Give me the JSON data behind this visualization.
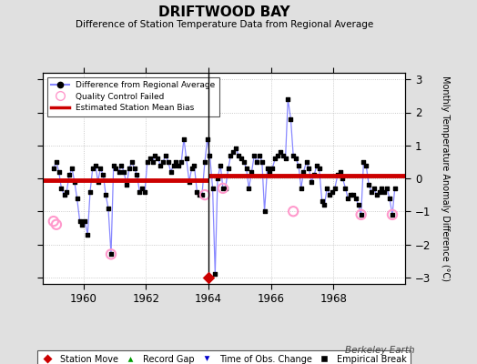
{
  "title": "DRIFTWOOD BAY",
  "subtitle": "Difference of Station Temperature Data from Regional Average",
  "ylabel": "Monthly Temperature Anomaly Difference (°C)",
  "xlim": [
    1958.7,
    1970.3
  ],
  "ylim": [
    -3.2,
    3.2
  ],
  "yticks": [
    -3,
    -2,
    -1,
    0,
    1,
    2,
    3
  ],
  "xticks": [
    1960,
    1962,
    1964,
    1966,
    1968
  ],
  "background_color": "#e0e0e0",
  "plot_background": "#ffffff",
  "grid_color": "#bbbbbb",
  "line_color": "#8888ff",
  "marker_color": "#000000",
  "bias_color": "#cc0000",
  "qc_color": "#ff99cc",
  "station_move_color": "#cc0000",
  "record_gap_color": "#009900",
  "time_obs_color": "#0000cc",
  "empirical_color": "#000000",
  "bias_before": -0.05,
  "bias_after": 0.07,
  "break_year": 1964.0,
  "station_move_x": 1964.0,
  "station_move_y": -3.0,
  "watermark": "Berkeley Earth",
  "data_x": [
    1959.04,
    1959.13,
    1959.21,
    1959.29,
    1959.38,
    1959.46,
    1959.54,
    1959.63,
    1959.71,
    1959.79,
    1959.88,
    1959.96,
    1960.04,
    1960.13,
    1960.21,
    1960.29,
    1960.38,
    1960.46,
    1960.54,
    1960.63,
    1960.71,
    1960.79,
    1960.88,
    1960.96,
    1961.04,
    1961.13,
    1961.21,
    1961.29,
    1961.38,
    1961.46,
    1961.54,
    1961.63,
    1961.71,
    1961.79,
    1961.88,
    1961.96,
    1962.04,
    1962.13,
    1962.21,
    1962.29,
    1962.38,
    1962.46,
    1962.54,
    1962.63,
    1962.71,
    1962.79,
    1962.88,
    1962.96,
    1963.04,
    1963.13,
    1963.21,
    1963.29,
    1963.38,
    1963.46,
    1963.54,
    1963.63,
    1963.71,
    1963.79,
    1963.88,
    1963.96,
    1964.04,
    1964.13,
    1964.21,
    1964.29,
    1964.38,
    1964.46,
    1964.54,
    1964.63,
    1964.71,
    1964.79,
    1964.88,
    1964.96,
    1965.04,
    1965.13,
    1965.21,
    1965.29,
    1965.38,
    1965.46,
    1965.54,
    1965.63,
    1965.71,
    1965.79,
    1965.88,
    1965.96,
    1966.04,
    1966.13,
    1966.21,
    1966.29,
    1966.38,
    1966.46,
    1966.54,
    1966.63,
    1966.71,
    1966.79,
    1966.88,
    1966.96,
    1967.04,
    1967.13,
    1967.21,
    1967.29,
    1967.38,
    1967.46,
    1967.54,
    1967.63,
    1967.71,
    1967.79,
    1967.88,
    1967.96,
    1968.04,
    1968.13,
    1968.21,
    1968.29,
    1968.38,
    1968.46,
    1968.54,
    1968.63,
    1968.71,
    1968.79,
    1968.88,
    1968.96,
    1969.04,
    1969.13,
    1969.21,
    1969.29,
    1969.38,
    1969.46,
    1969.54,
    1969.63,
    1969.71,
    1969.79,
    1969.88,
    1969.96
  ],
  "data_y": [
    0.3,
    0.5,
    0.2,
    -0.3,
    -0.5,
    -0.4,
    0.1,
    0.3,
    -0.1,
    -0.6,
    -1.3,
    -1.4,
    -1.3,
    -1.7,
    -0.4,
    0.3,
    0.4,
    -0.1,
    0.3,
    0.1,
    -0.5,
    -0.9,
    -2.3,
    0.4,
    0.3,
    0.2,
    0.4,
    0.2,
    -0.2,
    0.3,
    0.5,
    0.3,
    0.1,
    -0.4,
    -0.3,
    -0.4,
    0.5,
    0.6,
    0.5,
    0.7,
    0.6,
    0.4,
    0.5,
    0.7,
    0.5,
    0.2,
    0.4,
    0.5,
    0.4,
    0.5,
    1.2,
    0.6,
    -0.1,
    0.3,
    0.4,
    -0.4,
    -0.5,
    -0.5,
    0.5,
    1.2,
    0.7,
    -0.3,
    -2.9,
    0.0,
    0.4,
    -0.3,
    -0.3,
    0.3,
    0.7,
    0.8,
    0.9,
    0.7,
    0.6,
    0.5,
    0.3,
    -0.3,
    0.2,
    0.7,
    0.5,
    0.7,
    0.5,
    -1.0,
    0.3,
    0.2,
    0.3,
    0.6,
    0.7,
    0.8,
    0.7,
    0.6,
    2.4,
    1.8,
    0.7,
    0.6,
    0.4,
    -0.3,
    0.2,
    0.5,
    0.3,
    -0.1,
    0.1,
    0.4,
    0.3,
    -0.7,
    -0.8,
    -0.3,
    -0.5,
    -0.4,
    -0.3,
    0.1,
    0.2,
    0.0,
    -0.3,
    -0.6,
    -0.5,
    -0.5,
    -0.6,
    -0.8,
    -1.1,
    0.5,
    0.4,
    -0.2,
    -0.4,
    -0.3,
    -0.5,
    -0.4,
    -0.3,
    -0.4,
    -0.3,
    -0.6,
    -1.1,
    -0.3
  ],
  "qc_failed_x": [
    1959.04,
    1959.13,
    1960.88,
    1963.88,
    1964.46,
    1966.71,
    1968.88,
    1969.88
  ],
  "qc_failed_y": [
    -1.3,
    -1.4,
    -2.3,
    -0.5,
    -0.3,
    -1.0,
    -1.1,
    -1.1
  ],
  "vertical_line_x": 1964.0
}
